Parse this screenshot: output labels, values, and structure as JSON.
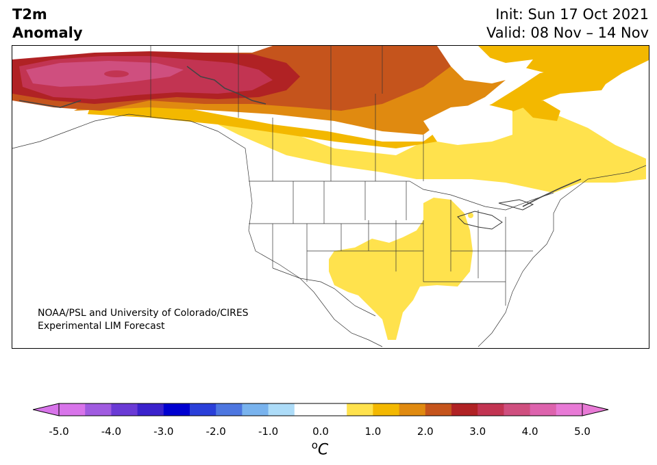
{
  "header": {
    "variable": "T2m",
    "field": "Anomaly",
    "init": "Init: Sun 17 Oct 2021",
    "valid": "Valid: 08 Nov – 14 Nov"
  },
  "credit": {
    "line1": "NOAA/PSL and University of Colorado/CIRES",
    "line2": "Experimental LIM Forecast"
  },
  "colorbar": {
    "unit_base": "C",
    "unit_degree": "o",
    "min": -5.0,
    "max": 5.0,
    "step": 0.5,
    "extend": "both",
    "ticks": [
      "-5.0",
      "-4.0",
      "-3.0",
      "-2.0",
      "-1.0",
      "0.0",
      "1.0",
      "2.0",
      "3.0",
      "4.0",
      "5.0"
    ],
    "colors": [
      "#d874ea",
      "#a05be0",
      "#6a3ad5",
      "#3a22cc",
      "#0000d0",
      "#2a3fd9",
      "#4d76e0",
      "#79b3ee",
      "#addcf8",
      "#ffffff",
      "#ffffff",
      "#ffe24d",
      "#f3b800",
      "#e08a10",
      "#c5541c",
      "#b02224",
      "#c23452",
      "#cf4f7f",
      "#dd63ad",
      "#e87ad6"
    ],
    "under_color": "#d874ea",
    "over_color": "#e87ad6"
  },
  "map": {
    "region": "North America",
    "regions": [
      {
        "name": "Alaska and northwestern Canada",
        "anomaly_range": [
          3.0,
          4.5
        ]
      },
      {
        "name": "northern Canada",
        "anomaly_range": [
          1.5,
          2.5
        ]
      },
      {
        "name": "central and eastern Canada",
        "anomaly_range": [
          0.5,
          1.5
        ]
      },
      {
        "name": "south-central United States",
        "anomaly_range": [
          0.5,
          1.0
        ]
      },
      {
        "name": "rest of contiguous United States",
        "anomaly_range": [
          -0.5,
          0.5
        ]
      }
    ]
  }
}
